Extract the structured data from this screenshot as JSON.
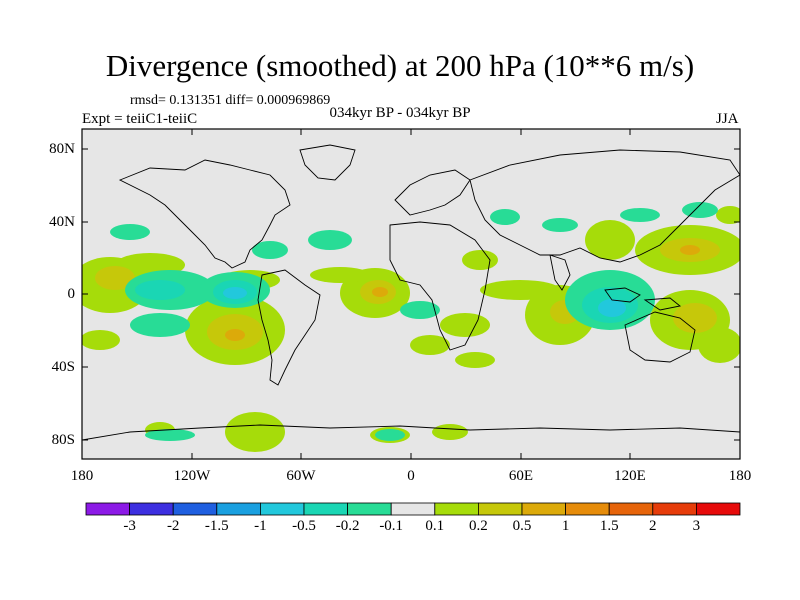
{
  "title": "Divergence (smoothed) at 200 hPa (10**6 m/s)",
  "stats_text": "rmsd= 0.131351 diff= 0.000969869",
  "experiment_text": "Expt = teiiC1-teiiC",
  "period_text": "034kyr BP - 034kyr BP",
  "season_text": "JJA",
  "lat_labels": [
    "80N",
    "40N",
    "0",
    "40S",
    "80S"
  ],
  "lon_labels": [
    "180",
    "120W",
    "60W",
    "0",
    "60E",
    "120E",
    "180"
  ],
  "colorbar": {
    "colors": [
      "#8c1ae6",
      "#3d2fe0",
      "#1f5fe0",
      "#1aa0e0",
      "#22c8dc",
      "#1ad6b4",
      "#28dc96",
      "#e6e6e6",
      "#a6dc0a",
      "#c6c80a",
      "#dcaa0a",
      "#e68c0a",
      "#e6640a",
      "#e63c0a",
      "#e60a0a"
    ],
    "labels": [
      "-3",
      "-2",
      "-1.5",
      "-1",
      "-0.5",
      "-0.2",
      "-0.1",
      "0.1",
      "0.2",
      "0.5",
      "1",
      "1.5",
      "2",
      "3"
    ]
  },
  "colors": {
    "ocean_background": "#e6e6e6",
    "coastline": "#000000"
  }
}
